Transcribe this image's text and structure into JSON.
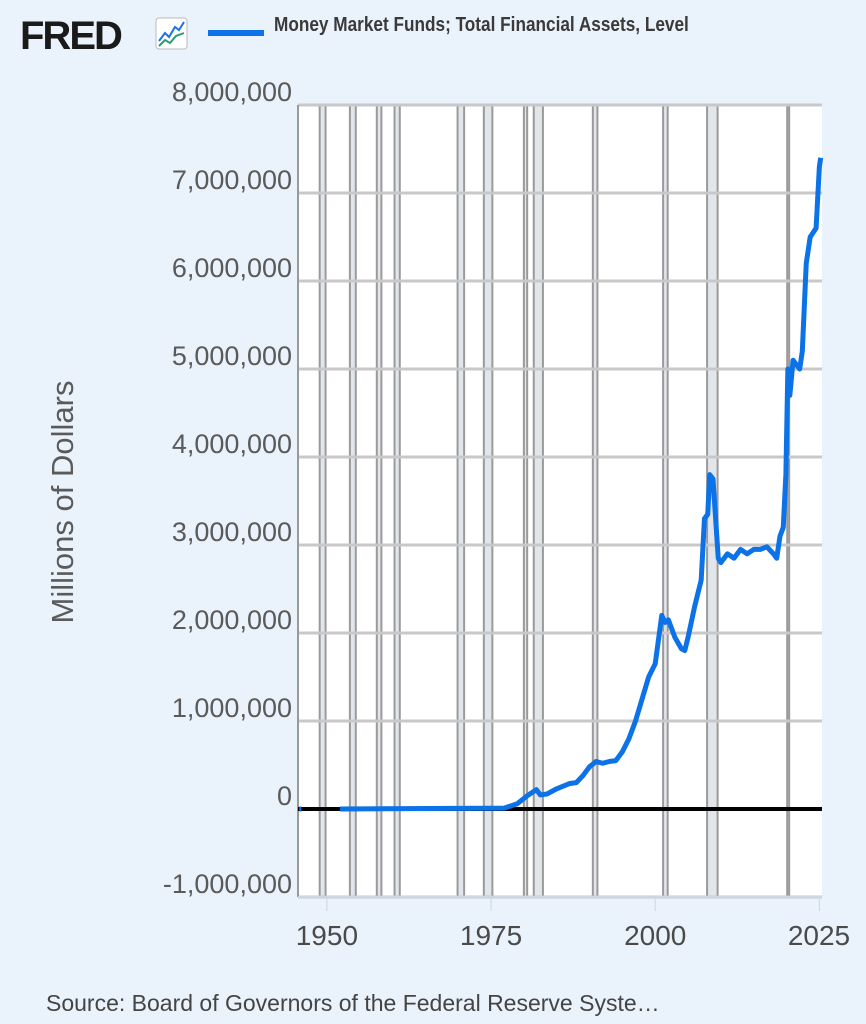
{
  "header": {
    "logo": "FRED",
    "logo_icon": "trend-chart-icon",
    "legend_label": "Money Market Funds; Total Financial Assets, Level"
  },
  "source": "Source: Board of Governors of the Federal Reserve Syste…",
  "colors": {
    "series": "#0b72e7",
    "background": "#eaf2fb",
    "zero_line": "#000000",
    "recession": "#e2e6ea"
  },
  "chart_data": {
    "type": "line",
    "title": "",
    "ylabel": "Millions of Dollars",
    "xlabel": "",
    "xlim": [
      1945.6,
      2025.4
    ],
    "ylim": [
      -1000000,
      8000000
    ],
    "x_ticks": [
      "1950",
      "1975",
      "2000",
      "2025"
    ],
    "y_ticks": [
      "8,000,000",
      "7,000,000",
      "6,000,000",
      "5,000,000",
      "4,000,000",
      "3,000,000",
      "2,000,000",
      "1,000,000",
      "0",
      "-1,000,000"
    ],
    "y_tick_values": [
      8000000,
      7000000,
      6000000,
      5000000,
      4000000,
      3000000,
      2000000,
      1000000,
      0,
      -1000000
    ],
    "grid": true,
    "legend": "top",
    "recessions": [
      [
        1948.9,
        1949.8
      ],
      [
        1953.5,
        1954.4
      ],
      [
        1957.6,
        1958.3
      ],
      [
        1960.3,
        1961.1
      ],
      [
        1969.9,
        1970.9
      ],
      [
        1973.9,
        1975.2
      ],
      [
        1980.0,
        1980.5
      ],
      [
        1981.5,
        1982.9
      ],
      [
        1990.5,
        1991.2
      ],
      [
        2001.2,
        2001.9
      ],
      [
        2007.9,
        2009.5
      ],
      [
        2020.1,
        2020.4
      ]
    ],
    "series": [
      {
        "name": "Money Market Funds; Total Financial Assets, Level",
        "segments": [
          [
            [
              1945.8,
              0
            ],
            [
              1946.1,
              0
            ]
          ],
          [
            [
              1952,
              0
            ],
            [
              1977,
              10000
            ],
            [
              1979,
              60000
            ],
            [
              1980.5,
              150000
            ],
            [
              1981.9,
              220000
            ],
            [
              1982.5,
              160000
            ],
            [
              1983.5,
              170000
            ],
            [
              1985,
              230000
            ],
            [
              1987,
              290000
            ],
            [
              1988,
              300000
            ],
            [
              1989,
              380000
            ],
            [
              1990,
              480000
            ],
            [
              1991,
              540000
            ],
            [
              1992,
              520000
            ],
            [
              1993,
              540000
            ],
            [
              1994,
              550000
            ],
            [
              1995,
              650000
            ],
            [
              1996,
              800000
            ],
            [
              1997,
              1000000
            ],
            [
              1998,
              1250000
            ],
            [
              1999,
              1500000
            ],
            [
              2000,
              1650000
            ],
            [
              2001,
              2200000
            ],
            [
              2001.5,
              2120000
            ],
            [
              2002,
              2150000
            ],
            [
              2003,
              1950000
            ],
            [
              2004,
              1820000
            ],
            [
              2004.5,
              1800000
            ],
            [
              2005,
              1950000
            ],
            [
              2006,
              2300000
            ],
            [
              2007,
              2600000
            ],
            [
              2007.5,
              3300000
            ],
            [
              2008,
              3350000
            ],
            [
              2008.3,
              3800000
            ],
            [
              2008.8,
              3750000
            ],
            [
              2009.2,
              3300000
            ],
            [
              2009.6,
              2850000
            ],
            [
              2010,
              2800000
            ],
            [
              2011,
              2900000
            ],
            [
              2012,
              2850000
            ],
            [
              2013,
              2950000
            ],
            [
              2014,
              2900000
            ],
            [
              2015,
              2950000
            ],
            [
              2016,
              2950000
            ],
            [
              2017,
              2980000
            ],
            [
              2018,
              2900000
            ],
            [
              2018.5,
              2850000
            ],
            [
              2019,
              3100000
            ],
            [
              2019.5,
              3200000
            ],
            [
              2019.9,
              3800000
            ],
            [
              2020.2,
              5000000
            ],
            [
              2020.5,
              4700000
            ],
            [
              2021,
              5100000
            ],
            [
              2021.5,
              5050000
            ],
            [
              2022,
              5000000
            ],
            [
              2022.4,
              5200000
            ],
            [
              2023,
              6200000
            ],
            [
              2023.6,
              6500000
            ],
            [
              2024.5,
              6600000
            ],
            [
              2025,
              7300000
            ],
            [
              2025.2,
              7400000
            ]
          ]
        ]
      }
    ]
  }
}
